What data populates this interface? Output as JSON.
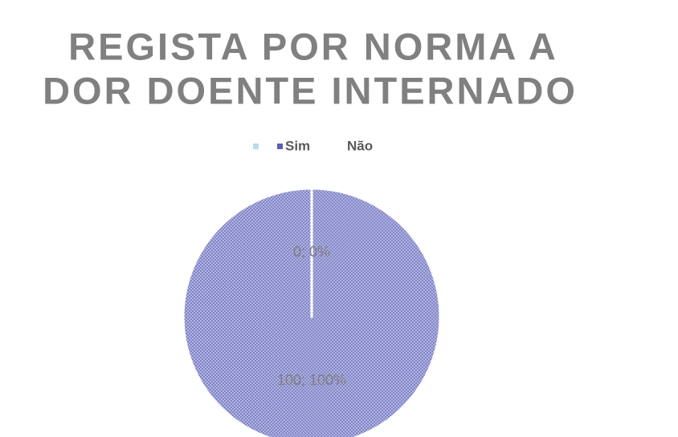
{
  "chart_data": {
    "type": "pie",
    "title": [
      "REGISTA  POR NORMA A",
      "DOR  DOENTE INTERNADO"
    ],
    "categories": [
      "Sim",
      "Não"
    ],
    "values": [
      0,
      100
    ],
    "value_labels": [
      "0; 0%",
      "100; 100%"
    ],
    "colors": [
      "#b7dde8",
      "#7b7fc4"
    ],
    "legend": "top"
  }
}
